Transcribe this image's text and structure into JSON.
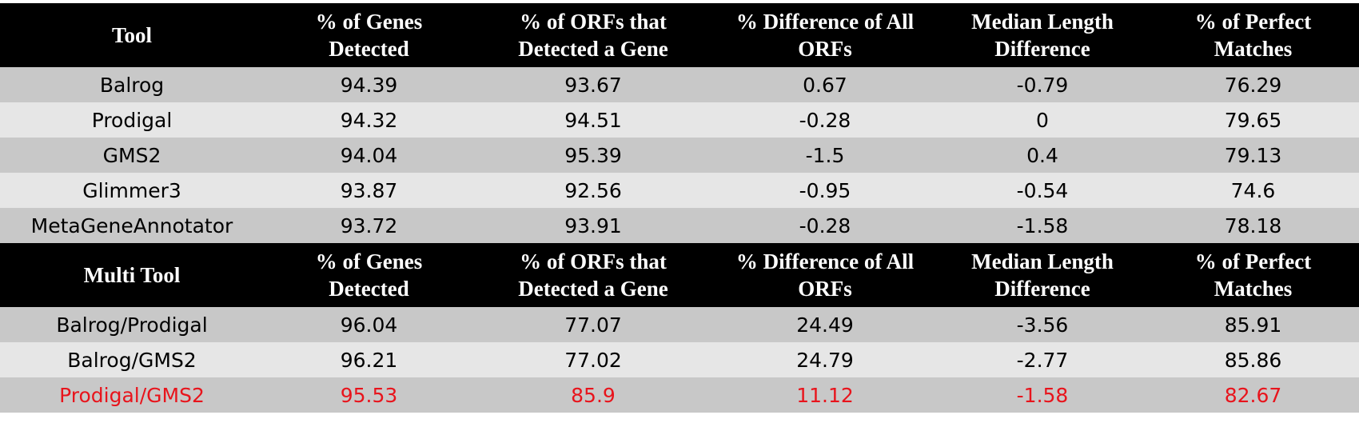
{
  "table": {
    "columns": [
      "",
      "% of Genes Detected",
      "% of ORFs that Detected a Gene",
      "% Difference of All ORFs",
      "Median Length Difference",
      "% of Perfect Matches"
    ],
    "sections": [
      {
        "header": {
          "tool": "Tool",
          "genes_line1": "% of Genes",
          "genes_line2": "Detected",
          "orfs_line1": "% of ORFs that",
          "orfs_line2": "Detected a Gene",
          "diff_line1": "% Difference of All",
          "diff_line2": "ORFs",
          "median_line1": "Median Length",
          "median_line2": "Difference",
          "perfect_line1": "% of Perfect",
          "perfect_line2": "Matches"
        },
        "rows": [
          {
            "tool": "Balrog",
            "genes": "94.39",
            "orfs": "93.67",
            "diff": "0.67",
            "median": "-0.79",
            "perfect": "76.29"
          },
          {
            "tool": "Prodigal",
            "genes": "94.32",
            "orfs": "94.51",
            "diff": "-0.28",
            "median": "0",
            "perfect": "79.65"
          },
          {
            "tool": "GMS2",
            "genes": "94.04",
            "orfs": "95.39",
            "diff": "-1.5",
            "median": "0.4",
            "perfect": "79.13"
          },
          {
            "tool": "Glimmer3",
            "genes": "93.87",
            "orfs": "92.56",
            "diff": "-0.95",
            "median": "-0.54",
            "perfect": "74.6"
          },
          {
            "tool": "MetaGeneAnnotator",
            "genes": "93.72",
            "orfs": "93.91",
            "diff": "-0.28",
            "median": "-1.58",
            "perfect": "78.18"
          }
        ]
      },
      {
        "header": {
          "tool": "Multi Tool",
          "genes_line1": "% of Genes",
          "genes_line2": "Detected",
          "orfs_line1": "% of ORFs that",
          "orfs_line2": "Detected a Gene",
          "diff_line1": "% Difference of All",
          "diff_line2": "ORFs",
          "median_line1": "Median Length",
          "median_line2": "Difference",
          "perfect_line1": "% of Perfect",
          "perfect_line2": "Matches"
        },
        "rows": [
          {
            "tool": "Balrog/Prodigal",
            "genes": "96.04",
            "orfs": "77.07",
            "diff": "24.49",
            "median": "-3.56",
            "perfect": "85.91"
          },
          {
            "tool": "Balrog/GMS2",
            "genes": "96.21",
            "orfs": "77.02",
            "diff": "24.79",
            "median": "-2.77",
            "perfect": "85.86"
          },
          {
            "tool": "Prodigal/GMS2",
            "genes": "95.53",
            "orfs": "85.9",
            "diff": "11.12",
            "median": "-1.58",
            "perfect": "82.67"
          }
        ]
      }
    ],
    "colors": {
      "header_bg": "#000000",
      "header_text": "#ffffff",
      "row_dark": "#c8c8c8",
      "row_light": "#e6e6e6",
      "highlight_text": "#e8141c"
    }
  }
}
